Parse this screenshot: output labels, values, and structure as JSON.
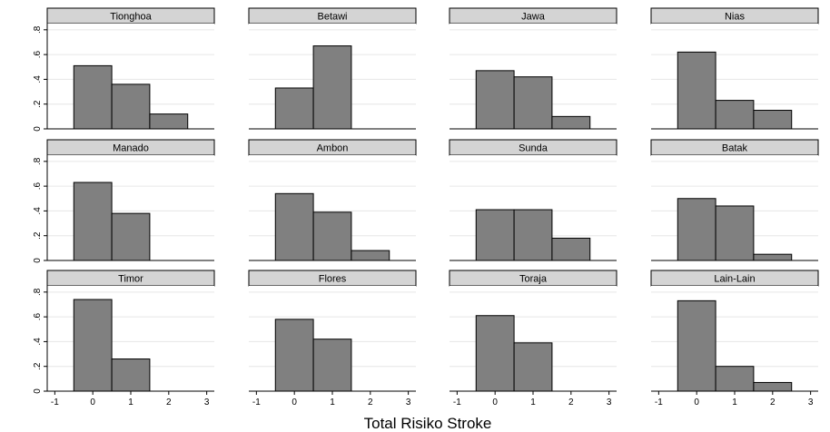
{
  "chart_data": {
    "type": "bar",
    "xlabel": "Total Risiko Stroke",
    "x_ticks": [
      -1,
      0,
      1,
      2,
      3
    ],
    "x_tick_labels": [
      "-1",
      "0",
      "1",
      "2",
      "3"
    ],
    "xlim": [
      -1.2,
      3.2
    ],
    "y_ticks": [
      0,
      0.2,
      0.4,
      0.6,
      0.8
    ],
    "y_tick_labels": [
      "0",
      ".2",
      ".4",
      ".6",
      ".8"
    ],
    "ylim": [
      0,
      0.85
    ],
    "bin_width": 1,
    "grid": true,
    "bar_color": "#808080",
    "header_color": "#d4d4d4",
    "panels": [
      {
        "title": "Tionghoa",
        "bins": [
          0,
          1,
          2
        ],
        "values": [
          0.51,
          0.36,
          0.12
        ]
      },
      {
        "title": "Betawi",
        "bins": [
          0,
          1
        ],
        "values": [
          0.33,
          0.67
        ]
      },
      {
        "title": "Jawa",
        "bins": [
          0,
          1,
          2
        ],
        "values": [
          0.47,
          0.42,
          0.1
        ]
      },
      {
        "title": "Nias",
        "bins": [
          0,
          1,
          2
        ],
        "values": [
          0.62,
          0.23,
          0.15
        ]
      },
      {
        "title": "Manado",
        "bins": [
          0,
          1
        ],
        "values": [
          0.63,
          0.38
        ]
      },
      {
        "title": "Ambon",
        "bins": [
          0,
          1,
          2
        ],
        "values": [
          0.54,
          0.39,
          0.08
        ]
      },
      {
        "title": "Sunda",
        "bins": [
          0,
          1,
          2
        ],
        "values": [
          0.41,
          0.41,
          0.18
        ]
      },
      {
        "title": "Batak",
        "bins": [
          0,
          1,
          2
        ],
        "values": [
          0.5,
          0.44,
          0.05
        ]
      },
      {
        "title": "Timor",
        "bins": [
          0,
          1
        ],
        "values": [
          0.74,
          0.26
        ]
      },
      {
        "title": "Flores",
        "bins": [
          0,
          1
        ],
        "values": [
          0.58,
          0.42
        ]
      },
      {
        "title": "Toraja",
        "bins": [
          0,
          1
        ],
        "values": [
          0.61,
          0.39
        ]
      },
      {
        "title": "Lain-Lain",
        "bins": [
          0,
          1,
          2
        ],
        "values": [
          0.73,
          0.2,
          0.07
        ]
      }
    ]
  }
}
